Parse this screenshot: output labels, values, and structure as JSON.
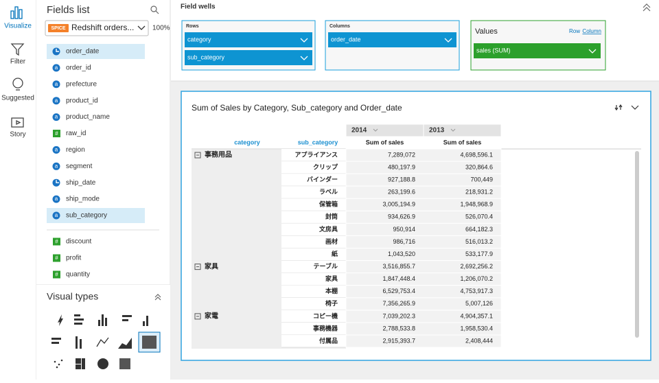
{
  "nav": {
    "items": [
      "Visualize",
      "Filter",
      "Suggested",
      "Story"
    ]
  },
  "fields": {
    "title": "Fields list",
    "spice": "SPICE",
    "dataset": "Redshift orders...",
    "percent": "100%",
    "dimensions": [
      {
        "name": "order_date"
      },
      {
        "name": "order_id",
        "icon": "a"
      },
      {
        "name": "prefecture",
        "icon": "a"
      },
      {
        "name": "product_id",
        "icon": "a"
      },
      {
        "name": "product_name",
        "icon": "a"
      },
      {
        "name": "raw_id",
        "icon": "#"
      },
      {
        "name": "region",
        "icon": "a"
      },
      {
        "name": "segment",
        "icon": "a"
      },
      {
        "name": "ship_date"
      },
      {
        "name": "ship_mode",
        "icon": "a"
      },
      {
        "name": "sub_category",
        "icon": "a"
      }
    ],
    "measures": [
      {
        "name": "discount",
        "icon": "#"
      },
      {
        "name": "profit",
        "icon": "#"
      },
      {
        "name": "quantity",
        "icon": "#"
      }
    ]
  },
  "visual_types": {
    "title": "Visual types"
  },
  "wells": {
    "title": "Field wells",
    "rows": {
      "label": "Rows",
      "items": [
        "category",
        "sub_category"
      ]
    },
    "columns": {
      "label": "Columns",
      "items": [
        "order_date"
      ]
    },
    "values": {
      "label": "Values",
      "row": "Row",
      "column": "Column",
      "items": [
        "sales (SUM)"
      ]
    }
  },
  "visual": {
    "title": "Sum of Sales by Category, Sub_category and Order_date",
    "years": [
      "2014",
      "2013"
    ],
    "headers": [
      "category",
      "sub_category",
      "Sum of sales"
    ],
    "groups": [
      {
        "name": "事務用品",
        "rows": [
          [
            "アプライアンス",
            "7,289,072",
            "4,698,596.1"
          ],
          [
            "クリップ",
            "480,197.9",
            "320,864.6"
          ],
          [
            "バインダー",
            "927,188.8",
            "700,449"
          ],
          [
            "ラベル",
            "263,199.6",
            "218,931.2"
          ],
          [
            "保管箱",
            "3,005,194.9",
            "1,948,968.9"
          ],
          [
            "封筒",
            "934,626.9",
            "526,070.4"
          ],
          [
            "文房具",
            "950,914",
            "664,182.3"
          ],
          [
            "画材",
            "986,716",
            "516,013.2"
          ],
          [
            "紙",
            "1,043,520",
            "533,177.9"
          ]
        ]
      },
      {
        "name": "家具",
        "rows": [
          [
            "テーブル",
            "3,516,855.7",
            "2,692,256.2"
          ],
          [
            "家具",
            "1,847,448.4",
            "1,206,070.2"
          ],
          [
            "本棚",
            "6,529,753.4",
            "4,753,917.3"
          ],
          [
            "椅子",
            "7,356,265.9",
            "5,007,126"
          ]
        ]
      },
      {
        "name": "家電",
        "rows": [
          [
            "コピー機",
            "7,039,202.3",
            "4,904,357.1"
          ],
          [
            "事務機器",
            "2,788,533.8",
            "1,958,530.4"
          ],
          [
            "付属品",
            "2,915,393.7",
            "2,408,444"
          ]
        ]
      }
    ]
  }
}
